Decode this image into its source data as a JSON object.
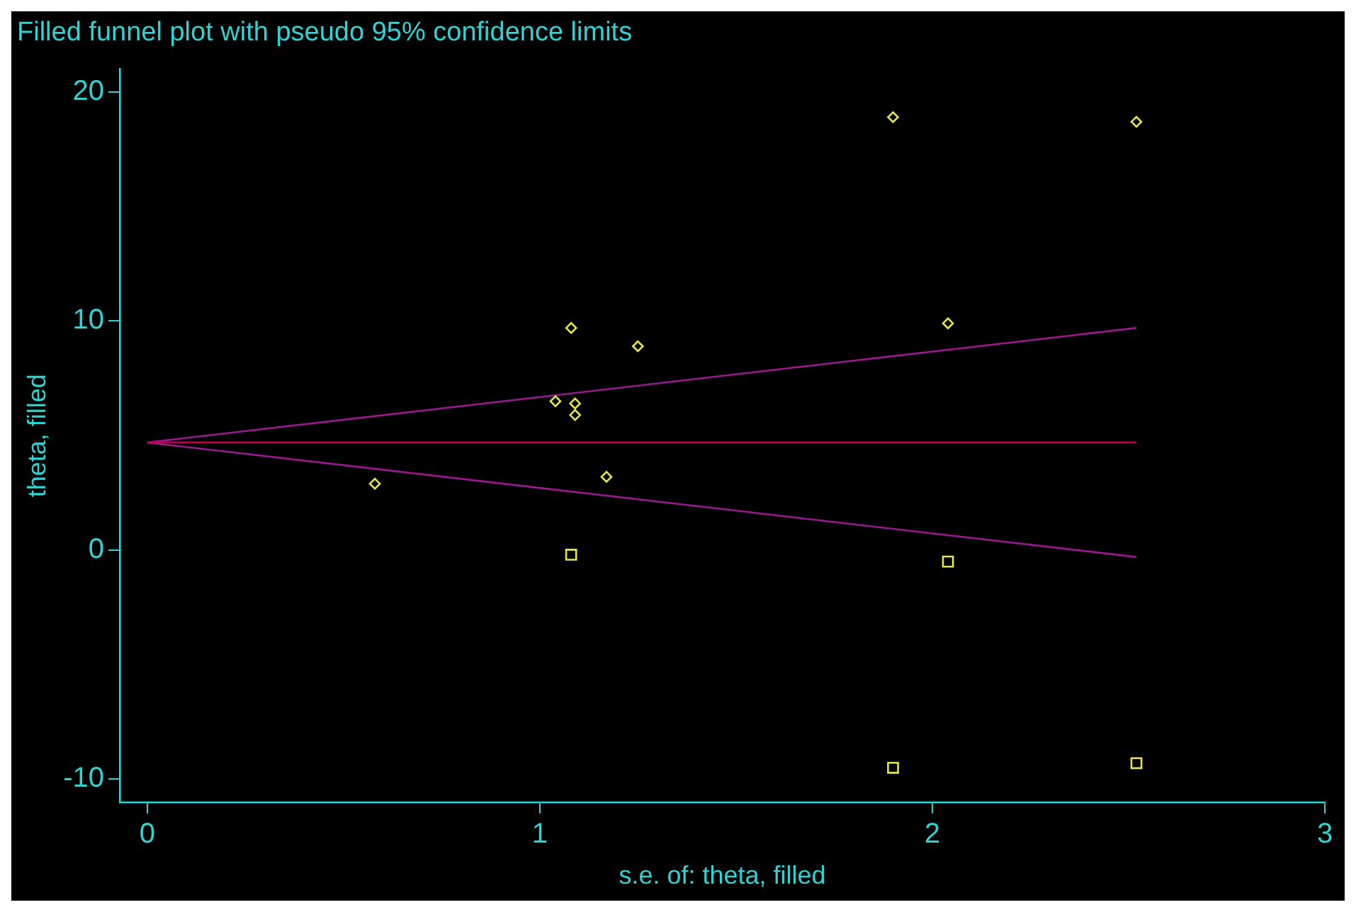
{
  "chart_data": {
    "type": "scatter",
    "title": "Filled funnel plot with pseudo 95% confidence limits",
    "xlabel": "s.e. of: theta, filled",
    "ylabel": "theta, filled",
    "xlim": [
      -0.07,
      3
    ],
    "xticks": [
      0,
      1,
      2,
      3
    ],
    "ylim": [
      -11,
      21
    ],
    "yticks": [
      -10,
      0,
      10,
      20
    ],
    "grid": false,
    "legend": false,
    "series": [
      {
        "marker": "diamond",
        "color": "#e6e64c",
        "x": [
          0.58,
          1.04,
          1.08,
          1.09,
          1.09,
          1.17,
          1.25,
          1.9,
          2.04,
          2.52
        ],
        "values": [
          2.9,
          6.5,
          9.7,
          6.4,
          5.9,
          3.2,
          8.9,
          18.9,
          9.9,
          18.7
        ]
      },
      {
        "marker": "square",
        "color": "#e6e64c",
        "x": [
          1.08,
          2.04,
          1.9,
          2.52
        ],
        "values": [
          -0.2,
          -0.5,
          -9.5,
          -9.3
        ]
      },
      {
        "type": "line",
        "marker": "none",
        "color": "#c0004a",
        "x": [
          0,
          2.52
        ],
        "values": [
          4.7,
          4.7
        ]
      },
      {
        "type": "line",
        "marker": "none",
        "color": "#99198f",
        "x": [
          0,
          2.52
        ],
        "values": [
          4.7,
          9.7
        ]
      },
      {
        "type": "line",
        "marker": "none",
        "color": "#99198f",
        "x": [
          0,
          2.52
        ],
        "values": [
          4.7,
          -0.3
        ]
      }
    ]
  }
}
